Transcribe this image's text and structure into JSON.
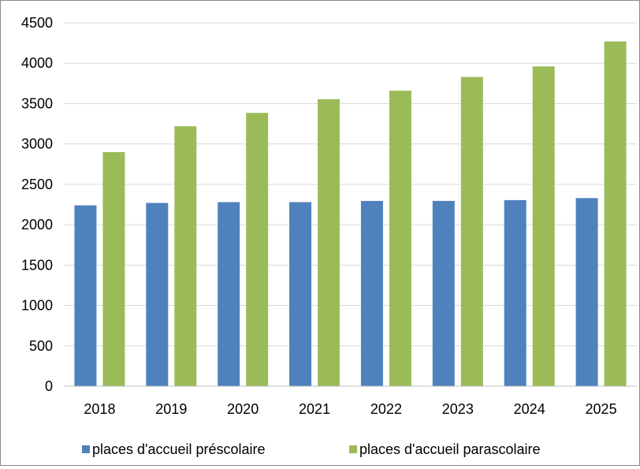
{
  "chart_data": {
    "type": "bar",
    "title": "",
    "xlabel": "",
    "ylabel": "",
    "categories": [
      "2018",
      "2019",
      "2020",
      "2021",
      "2022",
      "2023",
      "2024",
      "2025"
    ],
    "series": [
      {
        "name": "places d'accueil préscolaire",
        "color": "#4f81bd",
        "values": [
          2240,
          2270,
          2280,
          2280,
          2295,
          2295,
          2305,
          2330
        ]
      },
      {
        "name": "places d'accueil parascolaire",
        "color": "#9bbb59",
        "values": [
          2900,
          3220,
          3385,
          3555,
          3660,
          3830,
          3960,
          4270
        ]
      }
    ],
    "ylim": [
      0,
      4500
    ],
    "yticks": [
      0,
      500,
      1000,
      1500,
      2000,
      2500,
      3000,
      3500,
      4000,
      4500
    ],
    "grid": true,
    "legend": "bottom"
  }
}
